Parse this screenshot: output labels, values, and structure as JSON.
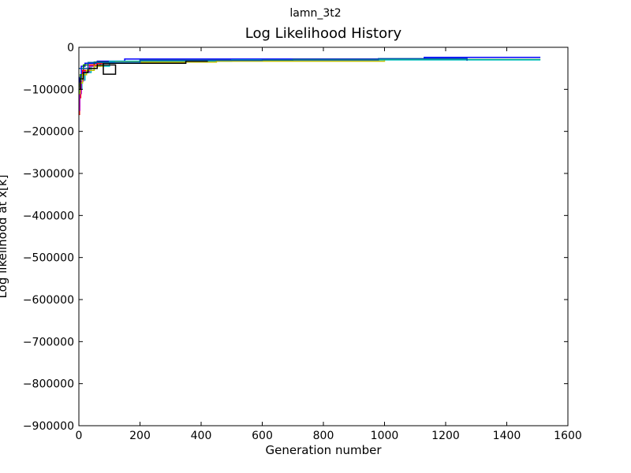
{
  "suptitle": "lamn_3t2",
  "chart_data": {
    "type": "line",
    "title": "Log Likelihood History",
    "xlabel": "Generation number",
    "ylabel": "Log likelihood at x[k]",
    "xlim": [
      0,
      1600
    ],
    "ylim": [
      -900000,
      0
    ],
    "xticks": [
      0,
      200,
      400,
      600,
      800,
      1000,
      1200,
      1400,
      1600
    ],
    "yticks": [
      0,
      -100000,
      -200000,
      -300000,
      -400000,
      -500000,
      -600000,
      -700000,
      -800000,
      -900000
    ],
    "grid": false,
    "series": [
      {
        "color": "#0000ff",
        "points": [
          [
            0,
            -95000
          ],
          [
            3,
            -72000
          ],
          [
            8,
            -45000
          ],
          [
            20,
            -38000
          ],
          [
            60,
            -33000
          ],
          [
            150,
            -28000
          ],
          [
            1130,
            -24000
          ],
          [
            1510,
            -24000
          ]
        ]
      },
      {
        "color": "#008000",
        "points": [
          [
            0,
            -90000
          ],
          [
            5,
            -65000
          ],
          [
            15,
            -42000
          ],
          [
            50,
            -35000
          ],
          [
            200,
            -31000
          ],
          [
            700,
            -29000
          ],
          [
            1510,
            -29000
          ]
        ]
      },
      {
        "color": "#ff0000",
        "points": [
          [
            0,
            -160000
          ],
          [
            2,
            -120000
          ],
          [
            6,
            -80000
          ],
          [
            12,
            -55000
          ],
          [
            30,
            -42000
          ],
          [
            60,
            -38000
          ],
          [
            90,
            -35000
          ]
        ]
      },
      {
        "color": "#00bfbf",
        "points": [
          [
            0,
            -140000
          ],
          [
            3,
            -100000
          ],
          [
            10,
            -78000
          ],
          [
            20,
            -60000
          ],
          [
            40,
            -45000
          ],
          [
            100,
            -33000
          ],
          [
            500,
            -30000
          ],
          [
            1510,
            -30000
          ]
        ]
      },
      {
        "color": "#bf00bf",
        "points": [
          [
            0,
            -150000
          ],
          [
            3,
            -110000
          ],
          [
            8,
            -80000
          ],
          [
            15,
            -58000
          ],
          [
            35,
            -45000
          ],
          [
            70,
            -40000
          ]
        ]
      },
      {
        "color": "#bfbf00",
        "points": [
          [
            0,
            -110000
          ],
          [
            4,
            -85000
          ],
          [
            12,
            -65000
          ],
          [
            25,
            -55000
          ],
          [
            50,
            -45000
          ],
          [
            80,
            -38000
          ],
          [
            120,
            -35000
          ],
          [
            450,
            -33000
          ],
          [
            1000,
            -31000
          ]
        ]
      },
      {
        "color": "#000000",
        "points": [
          [
            0,
            -100000
          ],
          [
            5,
            -75000
          ],
          [
            15,
            -60000
          ],
          [
            30,
            -50000
          ],
          [
            60,
            -42000
          ],
          [
            120,
            -64000
          ],
          [
            80,
            -38000
          ],
          [
            350,
            -33000
          ],
          [
            420,
            -30000
          ]
        ]
      },
      {
        "color": "#0055aa",
        "points": [
          [
            0,
            -50000
          ],
          [
            30,
            -36000
          ],
          [
            200,
            -31000
          ],
          [
            600,
            -30000
          ],
          [
            980,
            -27000
          ],
          [
            1270,
            -32000
          ]
        ]
      }
    ]
  }
}
